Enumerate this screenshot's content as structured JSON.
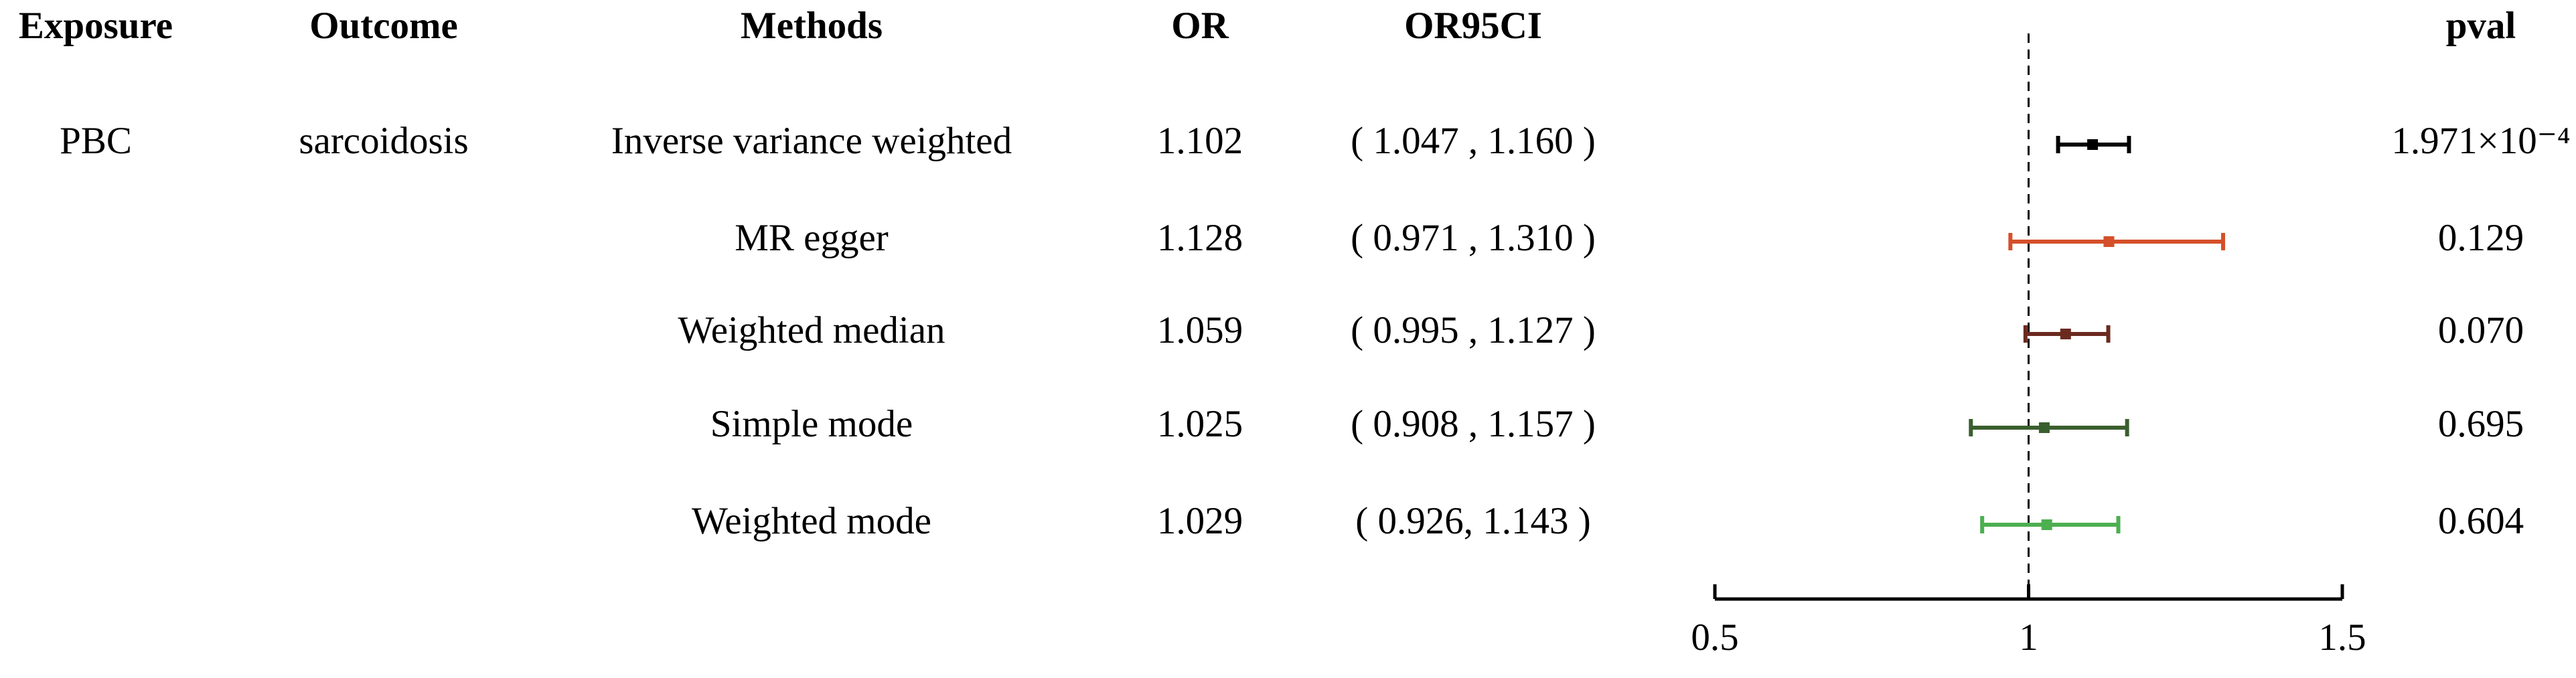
{
  "chart_data": {
    "type": "forest",
    "columns": [
      "Exposure",
      "Outcome",
      "Methods",
      "OR",
      "OR95CI",
      "pval"
    ],
    "exposure": "PBC",
    "outcome": "sarcoidosis",
    "methods": [
      "Inverse variance weighted",
      "MR egger",
      "Weighted median",
      "Simple mode",
      "Weighted mode"
    ],
    "or": [
      1.102,
      1.128,
      1.059,
      1.025,
      1.029
    ],
    "ci_lower": [
      1.047,
      0.971,
      0.995,
      0.908,
      0.926
    ],
    "ci_upper": [
      1.16,
      1.31,
      1.127,
      1.157,
      1.143
    ],
    "ci_labels": [
      "( 1.047 , 1.160 )",
      "( 0.971 , 1.310 )",
      "( 0.995 , 1.127 )",
      "( 0.908 , 1.157 )",
      "( 0.926, 1.143 )"
    ],
    "pval": [
      0.0001971,
      0.129,
      0.07,
      0.695,
      0.604
    ],
    "pval_labels": [
      "1.971×10⁻⁴",
      "0.129",
      "0.070",
      "0.695",
      "0.604"
    ],
    "colors": [
      "#000000",
      "#d4502a",
      "#6b2a20",
      "#3a5f2e",
      "#4caf50"
    ],
    "reference": 1,
    "xlim": [
      0.5,
      1.5
    ],
    "xticks": [
      0.5,
      1,
      1.5
    ]
  }
}
